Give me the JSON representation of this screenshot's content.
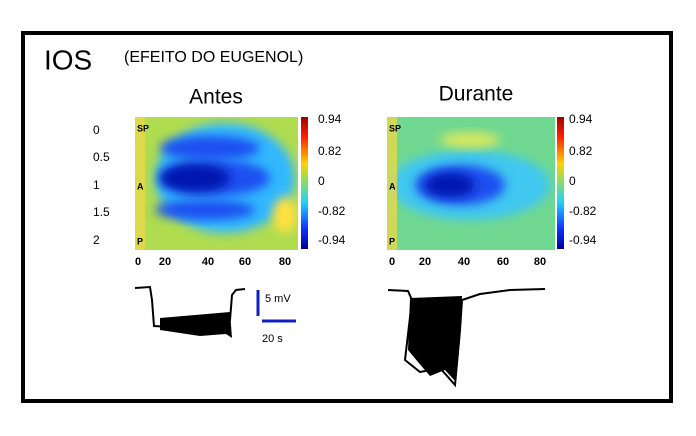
{
  "header": {
    "title": "IOS",
    "subtitle": "(EFEITO DO EUGENOL)"
  },
  "panels": [
    {
      "title": "Antes",
      "y_tick_labels": [
        "0",
        "0.5",
        "1",
        "1.5",
        "2"
      ],
      "x_tick_labels": [
        "0",
        "20",
        "40",
        "60",
        "80"
      ],
      "colorbar_labels": [
        "0.94",
        "0.82",
        "0",
        "-0.82",
        "-0.94"
      ],
      "markers": [
        "SP",
        "A",
        "P"
      ]
    },
    {
      "title": "Durante",
      "x_tick_labels": [
        "0",
        "20",
        "40",
        "60",
        "80"
      ],
      "colorbar_labels": [
        "0.94",
        "0.82",
        "0",
        "-0.82",
        "-0.94"
      ],
      "markers": [
        "SP",
        "A",
        "P"
      ]
    }
  ],
  "scale_bar": {
    "voltage": "5 mV",
    "time": "20 s"
  }
}
